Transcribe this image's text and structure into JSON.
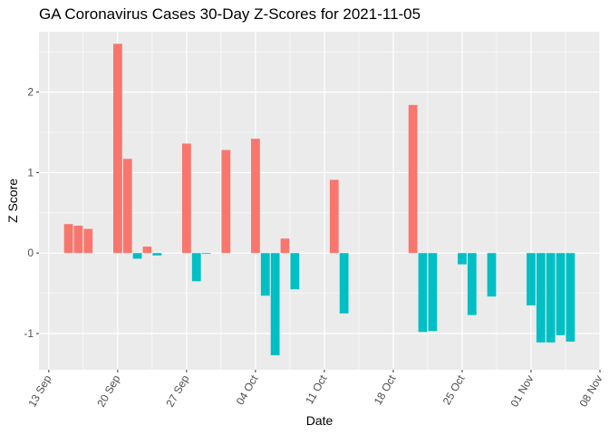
{
  "chart_data": {
    "type": "bar",
    "title": "GA Coronavirus Cases 30-Day Z-Scores for 2021-11-05",
    "xlabel": "Date",
    "ylabel": "Z Score",
    "x_tick_labels": [
      "13 Sep",
      "20 Sep",
      "27 Sep",
      "04 Oct",
      "11 Oct",
      "18 Oct",
      "25 Oct",
      "01 Nov",
      "08 Nov"
    ],
    "x_tick_dates": [
      "2021-09-13",
      "2021-09-20",
      "2021-09-27",
      "2021-10-04",
      "2021-10-11",
      "2021-10-18",
      "2021-10-25",
      "2021-11-01",
      "2021-11-08"
    ],
    "xlim": [
      "2021-09-12",
      "2021-11-08"
    ],
    "y_ticks": [
      -1,
      0,
      1,
      2
    ],
    "y_tick_labels": [
      "-1",
      "0",
      "1",
      "2"
    ],
    "ylim": [
      -1.45,
      2.75
    ],
    "grid": true,
    "legend": "none",
    "colors": {
      "positive": "#F8766D",
      "negative": "#00BFC4",
      "panel": "#EBEBEB",
      "grid": "#FFFFFF"
    },
    "x": [
      "2021-09-15",
      "2021-09-16",
      "2021-09-17",
      "2021-09-20",
      "2021-09-21",
      "2021-09-22",
      "2021-09-23",
      "2021-09-24",
      "2021-09-27",
      "2021-09-28",
      "2021-09-29",
      "2021-10-01",
      "2021-10-04",
      "2021-10-05",
      "2021-10-06",
      "2021-10-07",
      "2021-10-08",
      "2021-10-12",
      "2021-10-13",
      "2021-10-20",
      "2021-10-21",
      "2021-10-22",
      "2021-10-25",
      "2021-10-26",
      "2021-10-28",
      "2021-11-01",
      "2021-11-02",
      "2021-11-03",
      "2021-11-04",
      "2021-11-05"
    ],
    "values": [
      0.36,
      0.34,
      0.3,
      2.6,
      1.17,
      -0.07,
      0.08,
      -0.03,
      1.36,
      -0.35,
      -0.01,
      1.28,
      1.42,
      -0.53,
      -1.27,
      0.18,
      -0.45,
      0.91,
      -0.75,
      1.84,
      -0.98,
      -0.97,
      -0.14,
      -0.77,
      -0.54,
      -0.65,
      -1.11,
      -1.11,
      -1.02,
      -1.1
    ]
  }
}
